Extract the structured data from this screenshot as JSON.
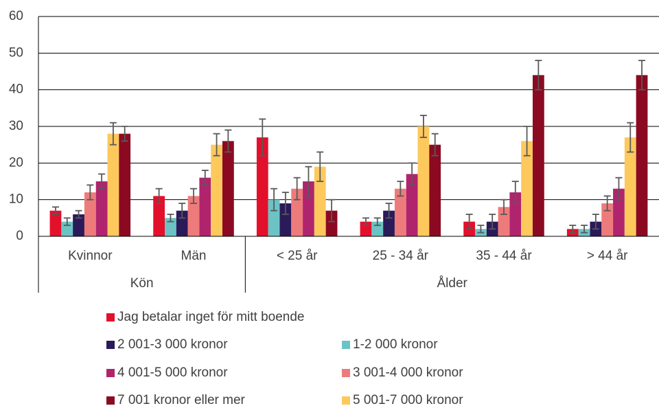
{
  "chart_data": {
    "type": "bar",
    "categories": [
      "Kvinnor",
      "Män",
      "< 25 år",
      "25 - 34 år",
      "35 - 44 år",
      "> 44 år"
    ],
    "groups": [
      {
        "label": "Kön",
        "span": 2
      },
      {
        "label": "Ålder",
        "span": 4
      }
    ],
    "series": [
      {
        "name": "Jag betalar inget för mitt boende",
        "color": "#e3102c",
        "values": [
          7,
          11,
          27,
          4,
          4,
          2
        ],
        "errors": [
          1,
          2,
          5,
          1,
          2,
          1
        ]
      },
      {
        "name": "1-2 000 kronor",
        "color": "#6cc3c4",
        "values": [
          4,
          5,
          10,
          4,
          2,
          2
        ],
        "errors": [
          1,
          1,
          3,
          1,
          1,
          1
        ]
      },
      {
        "name": "2 001-3 000 kronor",
        "color": "#2b1a5a",
        "values": [
          6,
          7,
          9,
          7,
          4,
          4
        ],
        "errors": [
          1,
          2,
          3,
          2,
          2,
          2
        ]
      },
      {
        "name": "3 001-4 000 kronor",
        "color": "#ee7b7b",
        "values": [
          12,
          11,
          13,
          13,
          8,
          9
        ],
        "errors": [
          2,
          2,
          3,
          2,
          2,
          2
        ]
      },
      {
        "name": "4 001-5 000 kronor",
        "color": "#b0246e",
        "values": [
          15,
          16,
          15,
          17,
          12,
          13
        ],
        "errors": [
          2,
          2,
          4,
          3,
          3,
          3
        ]
      },
      {
        "name": "5 001-7 000 kronor",
        "color": "#fdc95d",
        "values": [
          28,
          25,
          19,
          30,
          26,
          27
        ],
        "errors": [
          3,
          3,
          4,
          3,
          4,
          4
        ]
      },
      {
        "name": "7 001 kronor eller mer",
        "color": "#8b0a22",
        "values": [
          28,
          26,
          7,
          25,
          44,
          44
        ],
        "errors": [
          2,
          3,
          3,
          3,
          4,
          4
        ]
      }
    ],
    "ylim": [
      0,
      60
    ],
    "yticks": [
      0,
      10,
      20,
      30,
      40,
      50,
      60
    ],
    "grid": true,
    "error_color": "#595959"
  }
}
